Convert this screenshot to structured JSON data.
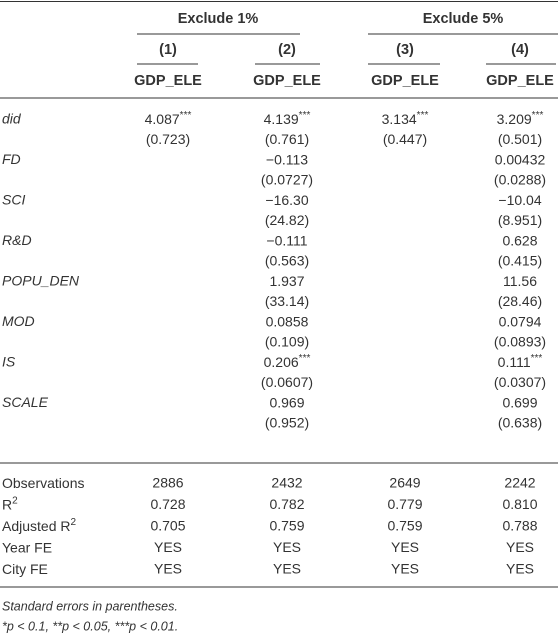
{
  "header": {
    "groups": [
      "Exclude 1%",
      "Exclude 5%"
    ],
    "columns": [
      "(1)",
      "(2)",
      "(3)",
      "(4)"
    ],
    "dependent": [
      "GDP_ELE",
      "GDP_ELE",
      "GDP_ELE",
      "GDP_ELE"
    ]
  },
  "table": {
    "variables": [
      {
        "name": "did",
        "coefs": [
          {
            "value": "4.087",
            "stars": "***"
          },
          {
            "value": "4.139",
            "stars": "***"
          },
          {
            "value": "3.134",
            "stars": "***"
          },
          {
            "value": "3.209",
            "stars": "***"
          }
        ],
        "ses": [
          "(0.723)",
          "(0.761)",
          "(0.447)",
          "(0.501)"
        ]
      },
      {
        "name": "FD",
        "coefs": [
          null,
          {
            "value": "−0.113"
          },
          null,
          {
            "value": "0.00432"
          }
        ],
        "ses": [
          null,
          "(0.0727)",
          null,
          "(0.0288)"
        ]
      },
      {
        "name": "SCI",
        "coefs": [
          null,
          {
            "value": "−16.30"
          },
          null,
          {
            "value": "−10.04"
          }
        ],
        "ses": [
          null,
          "(24.82)",
          null,
          "(8.951)"
        ]
      },
      {
        "name": "R&D",
        "coefs": [
          null,
          {
            "value": "−0.111"
          },
          null,
          {
            "value": "0.628"
          }
        ],
        "ses": [
          null,
          "(0.563)",
          null,
          "(0.415)"
        ]
      },
      {
        "name": "POPU_DEN",
        "coefs": [
          null,
          {
            "value": "1.937"
          },
          null,
          {
            "value": "11.56"
          }
        ],
        "ses": [
          null,
          "(33.14)",
          null,
          "(28.46)"
        ]
      },
      {
        "name": "MOD",
        "coefs": [
          null,
          {
            "value": "0.0858"
          },
          null,
          {
            "value": "0.0794"
          }
        ],
        "ses": [
          null,
          "(0.109)",
          null,
          "(0.0893)"
        ]
      },
      {
        "name": "IS",
        "coefs": [
          null,
          {
            "value": "0.206",
            "stars": "***"
          },
          null,
          {
            "value": "0.111",
            "stars": "***"
          }
        ],
        "ses": [
          null,
          "(0.0607)",
          null,
          "(0.0307)"
        ]
      },
      {
        "name": "SCALE",
        "coefs": [
          null,
          {
            "value": "0.969"
          },
          null,
          {
            "value": "0.699"
          }
        ],
        "ses": [
          null,
          "(0.952)",
          null,
          "(0.638)"
        ]
      }
    ],
    "stats": [
      {
        "label": "Observations",
        "values": [
          "2886",
          "2432",
          "2649",
          "2242"
        ]
      },
      {
        "label": "R",
        "label_sup": "2",
        "values": [
          "0.728",
          "0.782",
          "0.779",
          "0.810"
        ]
      },
      {
        "label": "Adjusted R",
        "label_sup": "2",
        "values": [
          "0.705",
          "0.759",
          "0.759",
          "0.788"
        ]
      },
      {
        "label": "Year FE",
        "values": [
          "YES",
          "YES",
          "YES",
          "YES"
        ]
      },
      {
        "label": "City FE",
        "values": [
          "YES",
          "YES",
          "YES",
          "YES"
        ]
      }
    ]
  },
  "notes": [
    "Standard errors in parentheses.",
    "*p < 0.1, **p < 0.05, ***p < 0.01."
  ]
}
